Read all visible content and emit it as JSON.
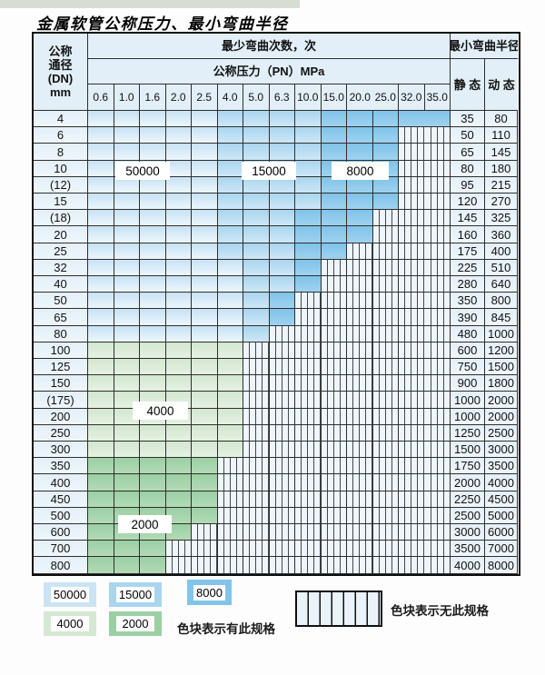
{
  "title": "金属软管公称压力、最小弯曲半径",
  "colors": {
    "cycles_50000": "#cbe4f4",
    "cycles_15000": "#a9d5ef",
    "cycles_8000": "#82c4e9",
    "cycles_4000": "#d5e8d3",
    "cycles_2000": "#9bd0a2",
    "no_spec_bg": "#eef5fb",
    "header_bg": "#e2eff8",
    "grid_line": "#2e2e2e"
  },
  "table": {
    "corner": {
      "line1": "公称",
      "line2": "通径",
      "line3": "(DN)",
      "line4": "mm"
    },
    "cycles_header": "最少弯曲次数，次",
    "pressure_header": "公称压力（PN）MPa",
    "radius_header": "最小弯曲半径",
    "static_label": "静 态",
    "dynamic_label": "动 态",
    "pressure_columns": [
      "0.6",
      "1.0",
      "1.6",
      "2.0",
      "2.5",
      "4.0",
      "5.0",
      "6.3",
      "10.0",
      "15.0",
      "20.0",
      "25.0",
      "32.0",
      "35.0"
    ],
    "rows": [
      {
        "dn": "4",
        "static": "35",
        "dynamic": "80",
        "bands": [
          [
            "b1",
            5
          ],
          [
            "b2",
            9
          ],
          [
            "b3",
            14
          ]
        ]
      },
      {
        "dn": "6",
        "static": "50",
        "dynamic": "110",
        "bands": [
          [
            "b1",
            5
          ],
          [
            "b2",
            9
          ],
          [
            "b3",
            12
          ]
        ]
      },
      {
        "dn": "8",
        "static": "65",
        "dynamic": "145",
        "bands": [
          [
            "b1",
            5
          ],
          [
            "b2",
            9
          ],
          [
            "b3",
            12
          ]
        ]
      },
      {
        "dn": "10",
        "static": "80",
        "dynamic": "180",
        "bands": [
          [
            "b1",
            5
          ],
          [
            "b2",
            9
          ],
          [
            "b3",
            12
          ]
        ]
      },
      {
        "dn": "(12)",
        "static": "95",
        "dynamic": "215",
        "bands": [
          [
            "b1",
            5
          ],
          [
            "b2",
            9
          ],
          [
            "b3",
            12
          ]
        ]
      },
      {
        "dn": "15",
        "static": "120",
        "dynamic": "270",
        "bands": [
          [
            "b1",
            5
          ],
          [
            "b2",
            9
          ],
          [
            "b3",
            12
          ]
        ]
      },
      {
        "dn": "(18)",
        "static": "145",
        "dynamic": "325",
        "bands": [
          [
            "b1",
            5
          ],
          [
            "b2",
            8
          ],
          [
            "b3",
            11
          ]
        ]
      },
      {
        "dn": "20",
        "static": "160",
        "dynamic": "360",
        "bands": [
          [
            "b1",
            5
          ],
          [
            "b2",
            8
          ],
          [
            "b3",
            11
          ]
        ]
      },
      {
        "dn": "25",
        "static": "175",
        "dynamic": "400",
        "bands": [
          [
            "b1",
            5
          ],
          [
            "b2",
            8
          ],
          [
            "b3",
            10
          ]
        ]
      },
      {
        "dn": "32",
        "static": "225",
        "dynamic": "510",
        "bands": [
          [
            "b1",
            6
          ],
          [
            "b2",
            8
          ],
          [
            "b3",
            9
          ]
        ]
      },
      {
        "dn": "40",
        "static": "280",
        "dynamic": "640",
        "bands": [
          [
            "b1",
            6
          ],
          [
            "b2",
            8
          ],
          [
            "b3",
            9
          ]
        ]
      },
      {
        "dn": "50",
        "static": "350",
        "dynamic": "800",
        "bands": [
          [
            "b1",
            6
          ],
          [
            "b2",
            7
          ],
          [
            "b3",
            8
          ]
        ]
      },
      {
        "dn": "65",
        "static": "390",
        "dynamic": "845",
        "bands": [
          [
            "b1",
            6
          ],
          [
            "b2",
            7
          ],
          [
            "b3",
            8
          ]
        ]
      },
      {
        "dn": "80",
        "static": "480",
        "dynamic": "1000",
        "bands": [
          [
            "b1",
            6
          ],
          [
            "b2",
            7
          ]
        ]
      },
      {
        "dn": "100",
        "static": "600",
        "dynamic": "1200",
        "bands": [
          [
            "g1",
            6
          ]
        ]
      },
      {
        "dn": "125",
        "static": "750",
        "dynamic": "1500",
        "bands": [
          [
            "g1",
            6
          ]
        ]
      },
      {
        "dn": "150",
        "static": "900",
        "dynamic": "1800",
        "bands": [
          [
            "g1",
            6
          ]
        ]
      },
      {
        "dn": "(175)",
        "static": "1000",
        "dynamic": "2000",
        "bands": [
          [
            "g1",
            6
          ]
        ]
      },
      {
        "dn": "200",
        "static": "1000",
        "dynamic": "2000",
        "bands": [
          [
            "g1",
            6
          ]
        ]
      },
      {
        "dn": "250",
        "static": "1250",
        "dynamic": "2500",
        "bands": [
          [
            "g1",
            6
          ]
        ]
      },
      {
        "dn": "300",
        "static": "1500",
        "dynamic": "3000",
        "bands": [
          [
            "g1",
            6
          ]
        ]
      },
      {
        "dn": "350",
        "static": "1750",
        "dynamic": "3500",
        "bands": [
          [
            "g2",
            5
          ]
        ]
      },
      {
        "dn": "400",
        "static": "2000",
        "dynamic": "4000",
        "bands": [
          [
            "g2",
            5
          ]
        ]
      },
      {
        "dn": "450",
        "static": "2250",
        "dynamic": "4500",
        "bands": [
          [
            "g2",
            5
          ]
        ]
      },
      {
        "dn": "500",
        "static": "2500",
        "dynamic": "5000",
        "bands": [
          [
            "g2",
            5
          ]
        ]
      },
      {
        "dn": "600",
        "static": "3000",
        "dynamic": "6000",
        "bands": [
          [
            "g2",
            4
          ]
        ]
      },
      {
        "dn": "700",
        "static": "3500",
        "dynamic": "7000",
        "bands": [
          [
            "g2",
            3
          ]
        ]
      },
      {
        "dn": "800",
        "static": "4000",
        "dynamic": "8000",
        "bands": [
          [
            "g2",
            3
          ]
        ]
      }
    ]
  },
  "region_labels": [
    {
      "text": "50000"
    },
    {
      "text": "15000"
    },
    {
      "text": "8000"
    },
    {
      "text": "4000"
    },
    {
      "text": "2000"
    }
  ],
  "legend": {
    "swatches": [
      {
        "label": "50000",
        "shade": "b1"
      },
      {
        "label": "15000",
        "shade": "b2"
      },
      {
        "label": "8000",
        "shade": "b3"
      },
      {
        "label": "4000",
        "shade": "g1"
      },
      {
        "label": "2000",
        "shade": "g2"
      }
    ],
    "has_spec_note": "色块表示有此规格",
    "no_spec_note": "色块表示无此规格"
  }
}
